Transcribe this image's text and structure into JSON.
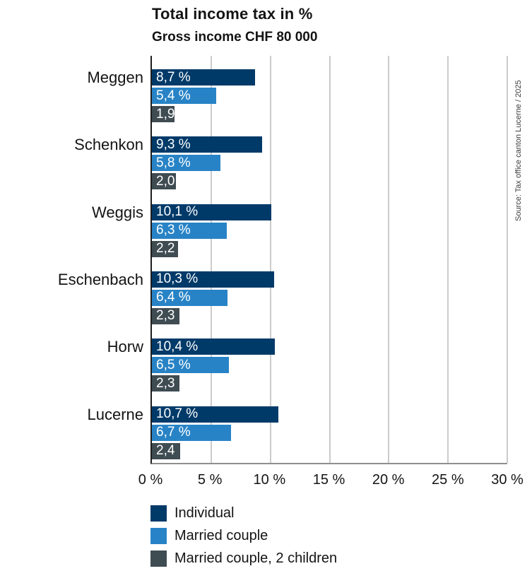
{
  "header": {
    "title": "Total income tax in %",
    "subtitle": "Gross income CHF 80 000"
  },
  "source": {
    "text": "Source: Tax office canton Lucerne / 2025"
  },
  "chart_data": {
    "type": "bar",
    "orientation": "horizontal",
    "title": "Total income tax in %",
    "subtitle": "Gross income CHF 80 000",
    "categories": [
      "Meggen",
      "Schenkon",
      "Weggis",
      "Eschenbach",
      "Horw",
      "Lucerne"
    ],
    "series": [
      {
        "name": "Individual",
        "color": "#003a69",
        "values": [
          8.7,
          9.3,
          10.1,
          10.3,
          10.4,
          10.7
        ],
        "labels": [
          "8,7 %",
          "9,3 %",
          "10,1 %",
          "10,3 %",
          "10,4 %",
          "10,7 %"
        ]
      },
      {
        "name": "Married couple",
        "color": "#2883c6",
        "values": [
          5.4,
          5.8,
          6.3,
          6.4,
          6.5,
          6.7
        ],
        "labels": [
          "5,4 %",
          "5,8 %",
          "6,3 %",
          "6,4 %",
          "6,5 %",
          "6,7 %"
        ]
      },
      {
        "name": "Married couple, 2 children",
        "color": "#3f4c52",
        "values": [
          1.9,
          2.0,
          2.2,
          2.3,
          2.3,
          2.4
        ],
        "labels": [
          "1,9",
          "2,0",
          "2,2",
          "2,3",
          "2,3",
          "2,4"
        ]
      }
    ],
    "xlim": [
      0,
      30
    ],
    "x_ticks": [
      "0 %",
      "5 %",
      "10 %",
      "15 %",
      "20 %",
      "25 %",
      "30 %"
    ],
    "x_tick_values": [
      0,
      5,
      10,
      15,
      20,
      25,
      30
    ],
    "grid": true,
    "legend_position": "bottom-left"
  },
  "colors": {
    "gridline": "#cbcbcb",
    "axis_left": "#1d1d1d",
    "axis_bottom": "#8f8f8f",
    "text": "#141414"
  }
}
